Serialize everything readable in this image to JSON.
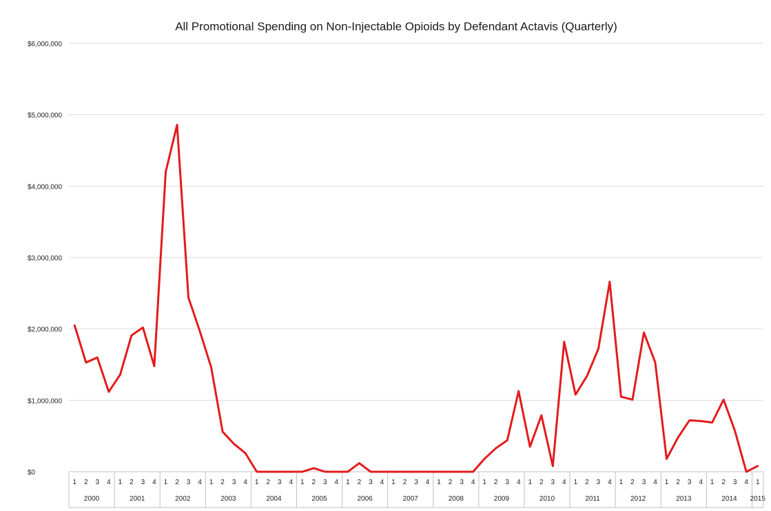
{
  "chart_data": {
    "type": "line",
    "title": "All Promotional Spending on Non-Injectable Opioids by Defendant Actavis (Quarterly)",
    "ylim": [
      0,
      6000000
    ],
    "yticks": [
      0,
      1000000,
      2000000,
      3000000,
      4000000,
      5000000,
      6000000
    ],
    "ytick_labels": [
      "$0",
      "$1,000,000",
      "$2,000,000",
      "$3,000,000",
      "$4,000,000",
      "$5,000,000",
      "$6,000,000"
    ],
    "grid": true,
    "line_color": "#e31a1c",
    "years": [
      "2000",
      "2001",
      "2002",
      "2003",
      "2004",
      "2005",
      "2006",
      "2007",
      "2008",
      "2009",
      "2010",
      "2011",
      "2012",
      "2013",
      "2014",
      "2015"
    ],
    "quarters_per_year": [
      4,
      4,
      4,
      4,
      4,
      4,
      4,
      4,
      4,
      4,
      4,
      4,
      4,
      4,
      4,
      1
    ],
    "values": [
      2050000,
      1530000,
      1600000,
      1120000,
      1360000,
      1910000,
      2020000,
      1480000,
      4200000,
      4860000,
      2440000,
      1970000,
      1460000,
      560000,
      390000,
      260000,
      0,
      0,
      0,
      0,
      0,
      50000,
      0,
      0,
      0,
      120000,
      0,
      0,
      0,
      0,
      0,
      0,
      0,
      0,
      0,
      0,
      180000,
      330000,
      440000,
      1130000,
      350000,
      790000,
      80000,
      1820000,
      1080000,
      1340000,
      1720000,
      2660000,
      1050000,
      1010000,
      1950000,
      1530000,
      180000,
      480000,
      720000,
      710000,
      690000,
      1010000,
      570000,
      0,
      80000
    ]
  }
}
